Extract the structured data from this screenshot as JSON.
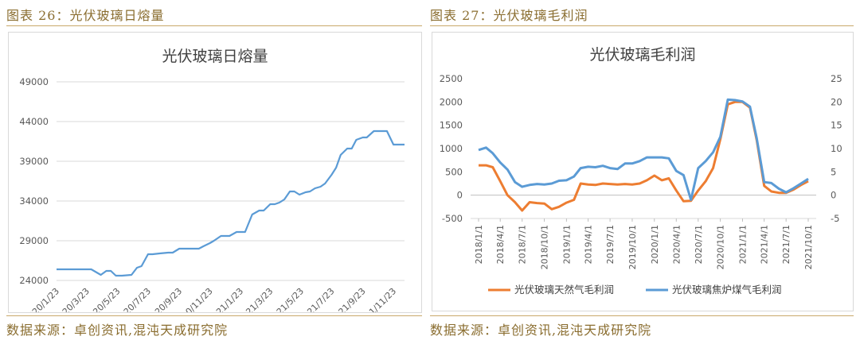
{
  "left": {
    "figure_title": "图表 26：光伏玻璃日熔量",
    "source": "数据来源：卓创资讯,混沌天成研究院"
  },
  "right": {
    "figure_title": "图表 27：光伏玻璃毛利润",
    "source": "数据来源：卓创资讯,混沌天成研究院"
  },
  "colors": {
    "gold": "#c9a86a",
    "blue": "#5b9bd5",
    "orange": "#ed7d31",
    "axis": "#d9d9d9"
  },
  "chart_data": [
    {
      "type": "line",
      "title": "光伏玻璃日熔量",
      "xlabel": "",
      "ylabel": "",
      "ylim": [
        24000,
        49000
      ],
      "y_ticks": [
        24000,
        29000,
        34000,
        39000,
        44000,
        49000
      ],
      "x_tick_labels": [
        "2020/1/23",
        "2020/3/23",
        "2020/5/23",
        "2020/7/23",
        "2020/9/23",
        "2020/11/23",
        "2021/1/23",
        "2021/3/23",
        "2021/5/23",
        "2021/7/23",
        "2021/9/23",
        "2021/11/23"
      ],
      "grid": true,
      "legend": "none",
      "series": [
        {
          "color": "#5b9bd5",
          "x": [
            "2020/1/23",
            "2020/2/1",
            "2020/2/15",
            "2020/3/1",
            "2020/3/15",
            "2020/4/1",
            "2020/4/20",
            "2020/5/1",
            "2020/5/10",
            "2020/5/20",
            "2020/6/1",
            "2020/6/20",
            "2020/7/1",
            "2020/7/10",
            "2020/7/23",
            "2020/8/1",
            "2020/8/15",
            "2020/9/1",
            "2020/9/10",
            "2020/9/23",
            "2020/10/1",
            "2020/10/15",
            "2020/11/1",
            "2020/11/10",
            "2020/11/23",
            "2020/12/1",
            "2020/12/15",
            "2021/1/1",
            "2021/1/15",
            "2021/1/23",
            "2021/2/1",
            "2021/2/15",
            "2021/3/1",
            "2021/3/10",
            "2021/3/23",
            "2021/4/1",
            "2021/4/10",
            "2021/4/20",
            "2021/5/1",
            "2021/5/10",
            "2021/5/20",
            "2021/6/1",
            "2021/6/10",
            "2021/6/20",
            "2021/7/1",
            "2021/7/10",
            "2021/7/23",
            "2021/8/1",
            "2021/8/10",
            "2021/8/23",
            "2021/9/1",
            "2021/9/10",
            "2021/9/23",
            "2021/10/1",
            "2021/10/15",
            "2021/11/1",
            "2021/11/10",
            "2021/11/23",
            "2021/12/1",
            "2021/12/15"
          ],
          "values": [
            25400,
            25400,
            25400,
            25400,
            25400,
            25400,
            24700,
            25200,
            25200,
            24600,
            24600,
            24700,
            25600,
            25800,
            27300,
            27300,
            27400,
            27500,
            27500,
            28000,
            28000,
            28000,
            28000,
            28300,
            28700,
            29000,
            29600,
            29600,
            30100,
            30100,
            30100,
            32300,
            32800,
            32800,
            33600,
            33600,
            33800,
            34200,
            35200,
            35200,
            34800,
            35100,
            35200,
            35600,
            35800,
            36200,
            37300,
            38200,
            39800,
            40600,
            40600,
            41700,
            42000,
            42000,
            42800,
            42800,
            42800,
            41100,
            41100,
            41100
          ]
        }
      ]
    },
    {
      "type": "line",
      "title": "光伏玻璃毛利润",
      "xlabel": "",
      "ylabel": "",
      "ylim": [
        -500,
        2500
      ],
      "y2lim": [
        -5,
        25
      ],
      "y_ticks": [
        -500,
        0,
        500,
        1000,
        1500,
        2000,
        2500
      ],
      "y2_ticks": [
        -5,
        0,
        5,
        10,
        15,
        20,
        25
      ],
      "x_tick_labels": [
        "2018/1/1",
        "2018/4/1",
        "2018/7/1",
        "2018/10/1",
        "2019/1/1",
        "2019/4/1",
        "2019/7/1",
        "2019/10/1",
        "2020/1/1",
        "2020/4/1",
        "2020/7/1",
        "2020/10/1",
        "2021/1/1",
        "2021/4/1",
        "2021/7/1",
        "2021/10/1"
      ],
      "grid": false,
      "legend": "bottom",
      "series": [
        {
          "name": "光伏玻璃天然气毛利润",
          "axis": "left",
          "color": "#ed7d31",
          "x": [
            "2018/1/1",
            "2018/2/1",
            "2018/3/1",
            "2018/4/1",
            "2018/5/1",
            "2018/6/1",
            "2018/7/1",
            "2018/8/1",
            "2018/9/1",
            "2018/10/1",
            "2018/11/1",
            "2018/12/1",
            "2019/1/1",
            "2019/2/1",
            "2019/3/1",
            "2019/4/1",
            "2019/5/1",
            "2019/6/1",
            "2019/7/1",
            "2019/8/1",
            "2019/9/1",
            "2019/10/1",
            "2019/11/1",
            "2019/12/1",
            "2020/1/1",
            "2020/2/1",
            "2020/3/1",
            "2020/4/1",
            "2020/5/1",
            "2020/6/1",
            "2020/7/1",
            "2020/8/1",
            "2020/9/1",
            "2020/10/1",
            "2020/11/1",
            "2020/12/1",
            "2021/1/1",
            "2021/2/1",
            "2021/3/1",
            "2021/4/1",
            "2021/5/1",
            "2021/6/1",
            "2021/7/1",
            "2021/8/1",
            "2021/9/1",
            "2021/10/1"
          ],
          "values": [
            640,
            640,
            600,
            300,
            0,
            -150,
            -330,
            -150,
            -170,
            -180,
            -300,
            -250,
            -160,
            -100,
            250,
            230,
            220,
            250,
            240,
            230,
            240,
            230,
            250,
            320,
            420,
            320,
            360,
            100,
            -130,
            -120,
            100,
            300,
            580,
            1200,
            1950,
            2000,
            2000,
            1880,
            1180,
            200,
            80,
            50,
            50,
            120,
            220,
            300
          ]
        },
        {
          "name": "光伏玻璃焦炉煤气毛利润",
          "axis": "right",
          "color": "#5b9bd5",
          "x": [
            "2018/1/1",
            "2018/2/1",
            "2018/3/1",
            "2018/4/1",
            "2018/5/1",
            "2018/6/1",
            "2018/7/1",
            "2018/8/1",
            "2018/9/1",
            "2018/10/1",
            "2018/11/1",
            "2018/12/1",
            "2019/1/1",
            "2019/2/1",
            "2019/3/1",
            "2019/4/1",
            "2019/5/1",
            "2019/6/1",
            "2019/7/1",
            "2019/8/1",
            "2019/9/1",
            "2019/10/1",
            "2019/11/1",
            "2019/12/1",
            "2020/1/1",
            "2020/2/1",
            "2020/3/1",
            "2020/4/1",
            "2020/5/1",
            "2020/6/1",
            "2020/7/1",
            "2020/8/1",
            "2020/9/1",
            "2020/10/1",
            "2020/11/1",
            "2020/12/1",
            "2021/1/1",
            "2021/2/1",
            "2021/3/1",
            "2021/4/1",
            "2021/5/1",
            "2021/6/1",
            "2021/7/1",
            "2021/8/1",
            "2021/9/1",
            "2021/10/1"
          ],
          "values": [
            9.7,
            10.2,
            9,
            7,
            5.5,
            2.8,
            1.8,
            2.2,
            2.4,
            2.3,
            2.5,
            3.1,
            3.2,
            4,
            5.8,
            6.1,
            6,
            6.3,
            5.8,
            5.6,
            6.8,
            6.8,
            7.3,
            8.1,
            8.1,
            8.1,
            7.9,
            5.2,
            4.3,
            -1,
            5.8,
            7.3,
            9.2,
            12.5,
            20.5,
            20.4,
            20.1,
            19,
            12.2,
            2.8,
            2.6,
            1.4,
            0.6,
            1.5,
            2.5,
            3.5
          ]
        }
      ]
    }
  ]
}
